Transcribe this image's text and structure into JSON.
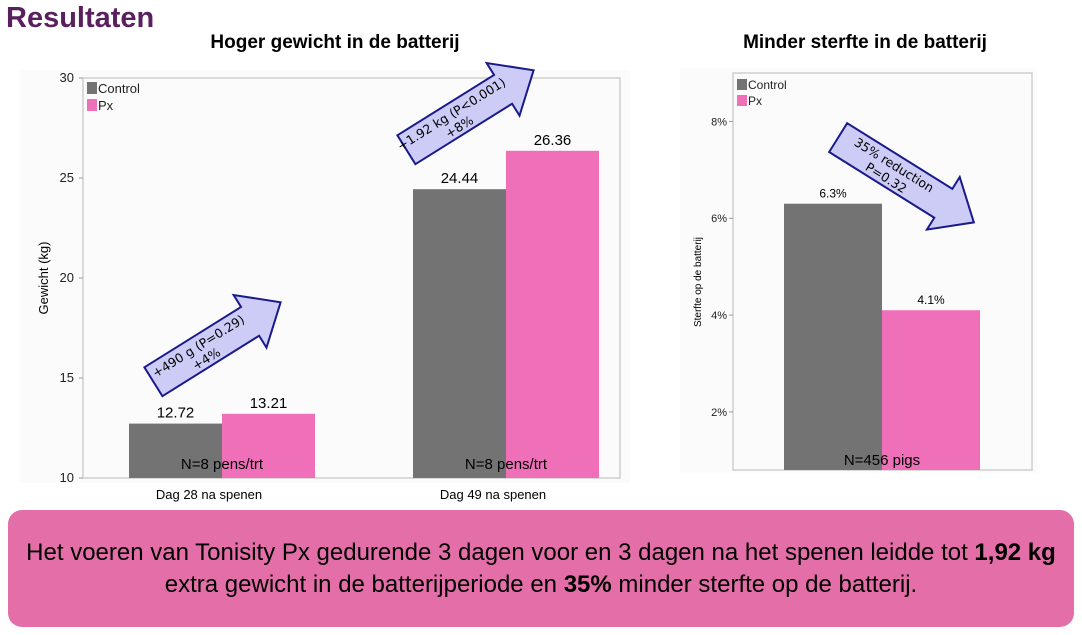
{
  "page_title": "Resultaten",
  "colors": {
    "control": "#737373",
    "px": "#ef6fb8",
    "arrow_fill": "#ccccf7",
    "arrow_stroke": "#1a1a8a",
    "title": "#5a1f5e",
    "summary_bg": "#e46fa8"
  },
  "chart_data": [
    {
      "type": "bar",
      "title": "Hoger gewicht in de batterij",
      "xlabel": "",
      "ylabel": "Gewicht (kg)",
      "ylim": [
        10,
        30
      ],
      "yticks": [
        "10",
        "15",
        "20",
        "25",
        "30"
      ],
      "categories": [
        "Dag 28 na spenen",
        "Dag 49 na spenen"
      ],
      "series": [
        {
          "name": "Control",
          "values": [
            12.72,
            24.44
          ],
          "labels": [
            "12.72",
            "24.44"
          ]
        },
        {
          "name": "Px",
          "values": [
            13.21,
            26.36
          ],
          "labels": [
            "13.21",
            "26.36"
          ]
        }
      ],
      "annotations": [
        {
          "line1": "+490 g (P=0.29)",
          "line2": "+4%"
        },
        {
          "line1": "+1.92 kg (P<0.001)",
          "line2": "+8%"
        }
      ],
      "n_labels": [
        "N=8 pens/trt",
        "N=8 pens/trt"
      ],
      "legend": "top-left",
      "grid": false
    },
    {
      "type": "bar",
      "title": "Minder sterfte in de batterij",
      "xlabel": "",
      "ylabel": "Sterfte op de batterij",
      "ylim": [
        0.8,
        9.0
      ],
      "yticks": [
        "2%",
        "4%",
        "6%",
        "8%"
      ],
      "categories": [
        ""
      ],
      "series": [
        {
          "name": "Control",
          "values": [
            6.3
          ],
          "labels": [
            "6.3%"
          ]
        },
        {
          "name": "Px",
          "values": [
            4.1
          ],
          "labels": [
            "4.1%"
          ]
        }
      ],
      "annotations": [
        {
          "line1": "35% reduction",
          "line2": "P=0.32"
        }
      ],
      "n_labels": [
        "N=456 pigs"
      ],
      "legend": "top-left",
      "grid": false
    }
  ],
  "summary": {
    "part1": "Het voeren van Tonisity Px gedurende 3 dagen voor en 3 dagen na het spenen leidde tot ",
    "bold1": "1,92 kg",
    "part2": " extra gewicht in de batterijperiode en ",
    "bold2": "35%",
    "part3": " minder sterfte op de batterij."
  }
}
